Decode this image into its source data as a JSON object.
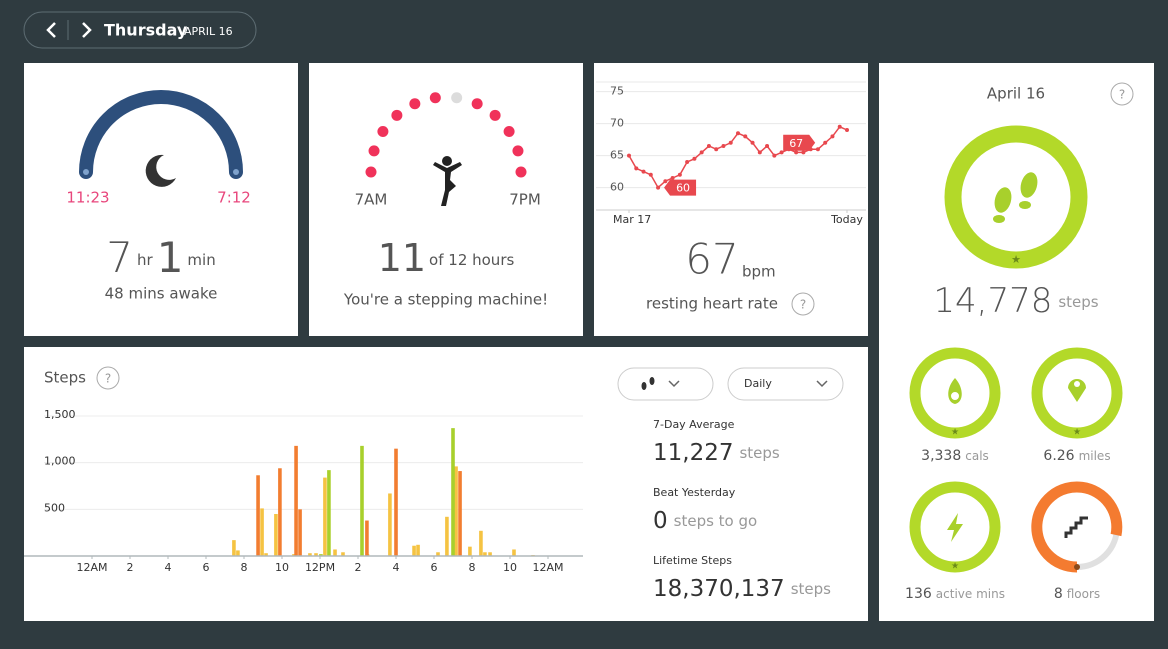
{
  "header": {
    "day": "Thursday",
    "date": "APRIL 16"
  },
  "sleep": {
    "start": "11:23",
    "end": "7:12",
    "hours": "7",
    "hours_unit": "hr",
    "minutes": "1",
    "minutes_unit": "min",
    "awake": "48 mins awake"
  },
  "hourly": {
    "start": "7AM",
    "end": "7PM",
    "count": "11",
    "goal_text": "of 12 hours",
    "message": "You're a stepping machine!",
    "hours_met": [
      1,
      1,
      1,
      1,
      1,
      1,
      0,
      1,
      1,
      1,
      1,
      1
    ]
  },
  "heart_rate": {
    "chart": {
      "type": "line",
      "color": "#e8484e",
      "x": [
        0,
        1,
        2,
        3,
        4,
        5,
        6,
        7,
        8,
        9,
        10,
        11,
        12,
        13,
        14,
        15,
        16,
        17,
        18,
        19,
        20,
        21,
        22,
        23,
        24,
        25,
        26,
        27,
        28,
        29,
        30
      ],
      "values": [
        65,
        63,
        62.5,
        62,
        60,
        61,
        61.5,
        62,
        64,
        64.5,
        65.5,
        66.5,
        66,
        66.5,
        67,
        68.5,
        68,
        67,
        65.5,
        66.5,
        65,
        65.5,
        66,
        65.5,
        65.5,
        66,
        66,
        67,
        68,
        69.5,
        69
      ],
      "xlim": [
        0,
        30
      ],
      "xticks": [
        {
          "value": 0,
          "label": "Mar 17"
        },
        {
          "value": 30,
          "label": "Today"
        }
      ],
      "ylim": [
        56.5,
        76.5
      ],
      "yticks": [
        60,
        65,
        70,
        75
      ],
      "annotations": [
        {
          "index": 4,
          "label": "60"
        },
        {
          "index": 27,
          "label": "67"
        }
      ]
    },
    "value": "67",
    "unit": "bpm",
    "label": "resting heart rate",
    "help": "?"
  },
  "steps_chart": {
    "title": "Steps",
    "help": "?",
    "dropdown": "Daily",
    "chart": {
      "type": "bar",
      "xlim": [
        0,
        24
      ],
      "xticks": [
        {
          "value": 0,
          "label": "12AM"
        },
        2,
        4,
        6,
        8,
        10,
        {
          "value": 12,
          "label": "12PM"
        },
        {
          "value": 14,
          "label": "2"
        },
        {
          "value": 16,
          "label": "4"
        },
        {
          "value": 18,
          "label": "6"
        },
        {
          "value": 20,
          "label": "8"
        },
        {
          "value": 22,
          "label": "10"
        },
        {
          "value": 24,
          "label": "12AM"
        }
      ],
      "ylim": [
        0,
        1500
      ],
      "yticks": [
        {
          "value": 500,
          "label": "500"
        },
        {
          "value": 1000,
          "label": "1,000"
        },
        {
          "value": 1500,
          "label": "1,500"
        }
      ],
      "series": [
        {
          "color": "#f5c342",
          "x": [
            7.47,
            7.68,
            8.95,
            9.16,
            9.68,
            10.63,
            11.47,
            11.79,
            12.26,
            12.79,
            13.21,
            14.5,
            15.68,
            16.95,
            17.16,
            18.21,
            18.68,
            19.16,
            19.89,
            20.47,
            20.68,
            20.95,
            22.21,
            23.21
          ],
          "values": [
            170,
            60,
            510,
            30,
            450,
            20,
            30,
            30,
            840,
            70,
            40,
            20,
            670,
            110,
            120,
            40,
            420,
            960,
            100,
            270,
            40,
            40,
            70,
            10
          ]
        },
        {
          "color": "#a8d02c",
          "x": [
            12.05,
            12.47,
            14.21,
            19.0
          ],
          "values": [
            20,
            920,
            1180,
            1370
          ]
        },
        {
          "color": "#f27d30",
          "x": [
            8.74,
            9.89,
            10.74,
            10.95,
            14.47,
            16.0,
            19.37
          ],
          "values": [
            865,
            940,
            1180,
            500,
            380,
            1150,
            910
          ]
        }
      ]
    },
    "stats": [
      {
        "label": "7-Day Average",
        "value": "11,227",
        "unit": "steps"
      },
      {
        "label": "Beat Yesterday",
        "value": "0",
        "unit": "steps to go"
      },
      {
        "label": "Lifetime Steps",
        "value": "18,370,137",
        "unit": "steps"
      }
    ]
  },
  "summary": {
    "date": "April 16",
    "help": "?",
    "steps": "14,778",
    "steps_unit": "steps",
    "metrics": [
      {
        "value": "3,338",
        "unit": "cals"
      },
      {
        "value": "6.26",
        "unit": "miles"
      },
      {
        "value": "136",
        "unit": "active mins"
      },
      {
        "value": "8",
        "unit": "floors"
      }
    ]
  }
}
